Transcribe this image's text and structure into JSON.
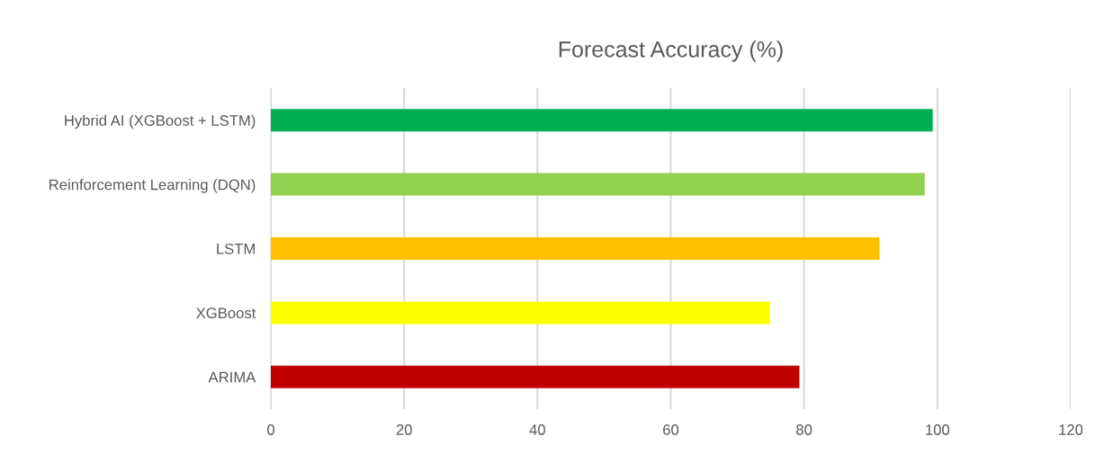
{
  "chart_data": {
    "type": "bar",
    "orientation": "horizontal",
    "title": "Forecast Accuracy (%)",
    "categories": [
      "Hybrid AI (XGBoost + LSTM)",
      "Reinforcement Learning (DQN)",
      "LSTM",
      "XGBoost",
      "ARIMA"
    ],
    "values": [
      99.3,
      98.1,
      91.3,
      74.9,
      79.3
    ],
    "colors": [
      "#00b050",
      "#92d050",
      "#ffc000",
      "#ffff00",
      "#c00000"
    ],
    "xlim": [
      0,
      120
    ],
    "xticks": [
      0,
      20,
      40,
      60,
      80,
      100,
      120
    ],
    "grid": "x"
  }
}
